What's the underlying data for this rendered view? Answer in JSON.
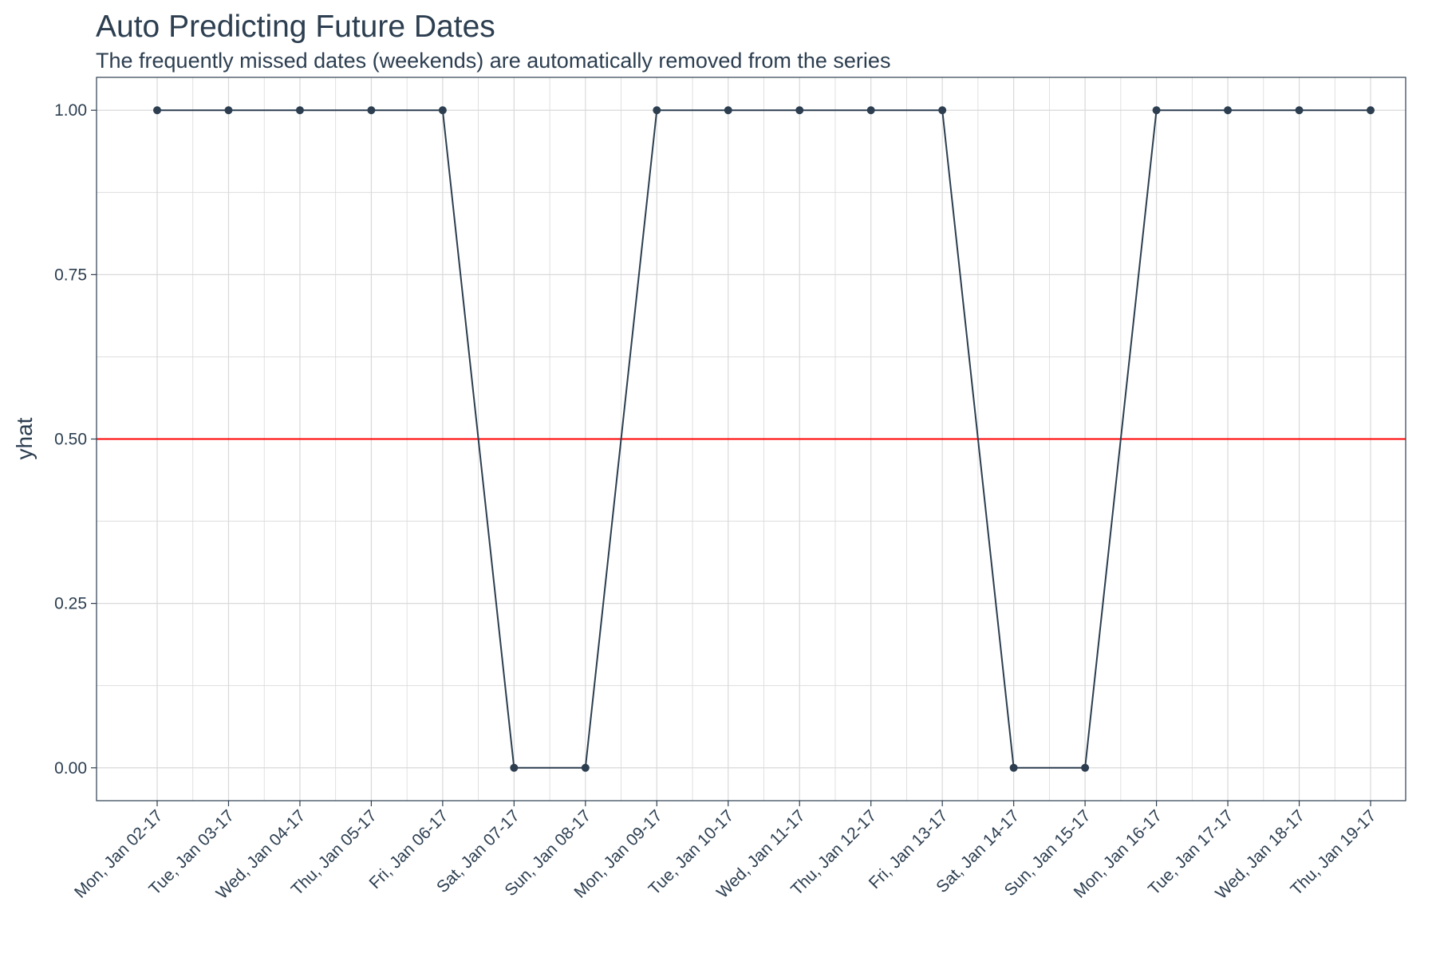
{
  "chart_data": {
    "type": "line",
    "title": "Auto Predicting Future Dates",
    "subtitle": "The frequently missed dates (weekends) are automatically removed from the series",
    "xlabel": "",
    "ylabel": "yhat",
    "ylim": [
      -0.05,
      1.05
    ],
    "yticks": [
      "0.00",
      "0.25",
      "0.50",
      "0.75",
      "1.00"
    ],
    "ytick_values": [
      0,
      0.25,
      0.5,
      0.75,
      1
    ],
    "grid": true,
    "legend": "none",
    "categories": [
      "Mon, Jan 02-17",
      "Tue, Jan 03-17",
      "Wed, Jan 04-17",
      "Thu, Jan 05-17",
      "Fri, Jan 06-17",
      "Sat, Jan 07-17",
      "Sun, Jan 08-17",
      "Mon, Jan 09-17",
      "Tue, Jan 10-17",
      "Wed, Jan 11-17",
      "Thu, Jan 12-17",
      "Fri, Jan 13-17",
      "Sat, Jan 14-17",
      "Sun, Jan 15-17",
      "Mon, Jan 16-17",
      "Tue, Jan 17-17",
      "Wed, Jan 18-17",
      "Thu, Jan 19-17"
    ],
    "series": [
      {
        "values": [
          1,
          1,
          1,
          1,
          1,
          0,
          0,
          1,
          1,
          1,
          1,
          1,
          0,
          0,
          1,
          1,
          1,
          1
        ],
        "color": "#2c3e50"
      }
    ],
    "reference_line": {
      "y": 0.5,
      "color": "#ff0000"
    },
    "colors": {
      "text": "#2c3e50",
      "grid": "#d9d9d9",
      "panel_border": "#2c3e50",
      "line": "#2c3e50",
      "reference": "#ff0000"
    }
  }
}
